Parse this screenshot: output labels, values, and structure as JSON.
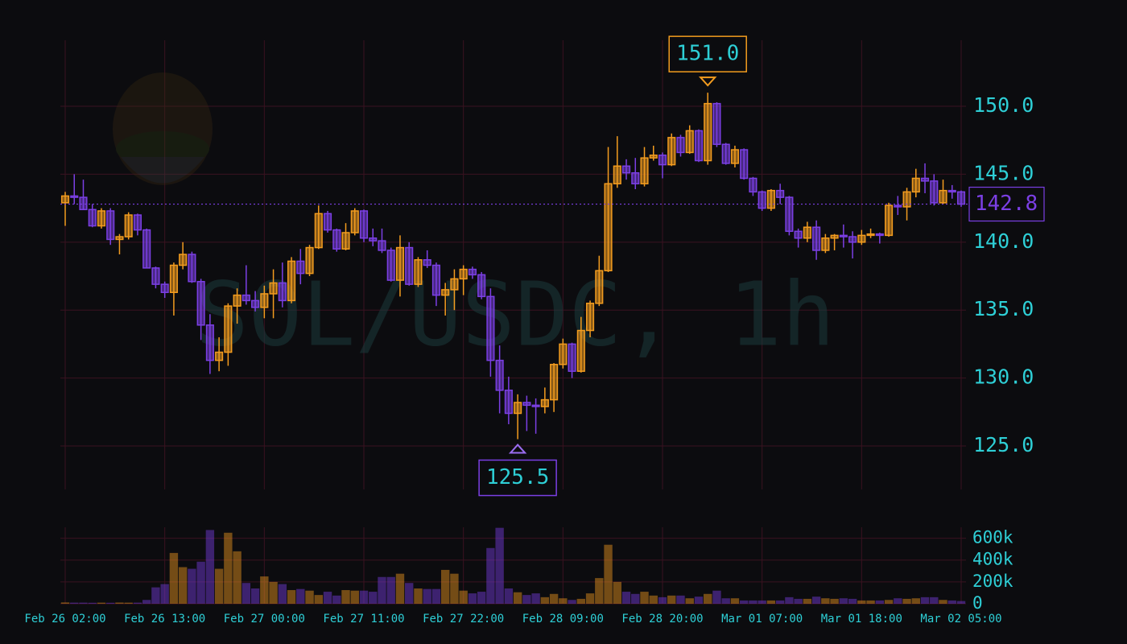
{
  "chart_data": {
    "type": "candlestick",
    "watermark": "SOL/USDC, 1h",
    "x": [
      "Feb 26 02:00",
      "Feb 26 03:00",
      "Feb 26 04:00",
      "Feb 26 05:00",
      "Feb 26 06:00",
      "Feb 26 07:00",
      "Feb 26 08:00",
      "Feb 26 09:00",
      "Feb 26 10:00",
      "Feb 26 11:00",
      "Feb 26 12:00",
      "Feb 26 13:00",
      "Feb 26 14:00",
      "Feb 26 15:00",
      "Feb 26 16:00",
      "Feb 26 17:00",
      "Feb 26 18:00",
      "Feb 26 19:00",
      "Feb 26 20:00",
      "Feb 26 21:00",
      "Feb 26 22:00",
      "Feb 26 23:00",
      "Feb 27 00:00",
      "Feb 27 01:00",
      "Feb 27 02:00",
      "Feb 27 03:00",
      "Feb 27 04:00",
      "Feb 27 05:00",
      "Feb 27 06:00",
      "Feb 27 07:00",
      "Feb 27 08:00",
      "Feb 27 09:00",
      "Feb 27 10:00",
      "Feb 27 11:00",
      "Feb 27 12:00",
      "Feb 27 13:00",
      "Feb 27 14:00",
      "Feb 27 15:00",
      "Feb 27 16:00",
      "Feb 27 17:00",
      "Feb 27 18:00",
      "Feb 27 19:00",
      "Feb 27 20:00",
      "Feb 27 21:00",
      "Feb 27 22:00",
      "Feb 27 23:00",
      "Feb 28 00:00",
      "Feb 28 01:00",
      "Feb 28 02:00",
      "Feb 28 03:00",
      "Feb 28 04:00",
      "Feb 28 05:00",
      "Feb 28 06:00",
      "Feb 28 07:00",
      "Feb 28 08:00",
      "Feb 28 09:00",
      "Feb 28 10:00",
      "Feb 28 11:00",
      "Feb 28 12:00",
      "Feb 28 13:00",
      "Feb 28 14:00",
      "Feb 28 15:00",
      "Feb 28 16:00",
      "Feb 28 17:00",
      "Feb 28 18:00",
      "Feb 28 19:00",
      "Feb 28 20:00",
      "Feb 28 21:00",
      "Feb 28 22:00",
      "Feb 28 23:00",
      "Mar 01 00:00",
      "Mar 01 01:00",
      "Mar 01 02:00",
      "Mar 01 03:00",
      "Mar 01 04:00",
      "Mar 01 05:00",
      "Mar 01 06:00",
      "Mar 01 07:00",
      "Mar 01 08:00",
      "Mar 01 09:00",
      "Mar 01 10:00",
      "Mar 01 11:00",
      "Mar 01 12:00",
      "Mar 01 13:00",
      "Mar 01 14:00",
      "Mar 01 15:00",
      "Mar 01 16:00",
      "Mar 01 17:00",
      "Mar 01 18:00",
      "Mar 01 19:00",
      "Mar 01 20:00",
      "Mar 01 21:00",
      "Mar 01 22:00",
      "Mar 01 23:00",
      "Mar 02 00:00",
      "Mar 02 01:00",
      "Mar 02 02:00",
      "Mar 02 03:00",
      "Mar 02 04:00",
      "Mar 02 05:00"
    ],
    "open": [
      142.9,
      143.4,
      143.3,
      142.4,
      141.2,
      142.3,
      140.2,
      140.4,
      142.0,
      140.9,
      138.1,
      136.9,
      136.3,
      138.3,
      139.1,
      137.1,
      133.9,
      131.3,
      131.9,
      135.3,
      136.1,
      135.7,
      135.2,
      136.2,
      137.0,
      135.7,
      138.6,
      137.7,
      139.6,
      142.1,
      140.9,
      139.5,
      140.7,
      142.3,
      140.3,
      140.1,
      139.4,
      137.2,
      139.6,
      136.9,
      138.7,
      138.3,
      136.1,
      136.5,
      137.3,
      138.0,
      137.6,
      136.0,
      131.3,
      129.1,
      127.4,
      128.2,
      128.0,
      127.9,
      128.4,
      131.0,
      132.5,
      130.5,
      133.5,
      135.5,
      137.9,
      144.3,
      145.6,
      145.1,
      144.3,
      146.2,
      146.4,
      145.7,
      147.7,
      146.6,
      148.2,
      146.0,
      150.2,
      147.2,
      145.8,
      146.8,
      144.7,
      143.7,
      142.5,
      143.8,
      143.3,
      140.8,
      140.3,
      141.1,
      139.4,
      140.3,
      140.5,
      140.4,
      140.0,
      140.5,
      140.6,
      140.5,
      142.7,
      142.6,
      143.7,
      144.7,
      144.5,
      142.9,
      143.8,
      143.7
    ],
    "high": [
      143.7,
      145.0,
      144.6,
      142.8,
      142.5,
      142.5,
      140.6,
      142.2,
      142.1,
      141.0,
      138.2,
      137.1,
      138.5,
      140.0,
      139.3,
      137.3,
      134.7,
      133.0,
      135.5,
      136.6,
      138.3,
      136.4,
      136.8,
      138.0,
      138.5,
      138.9,
      139.5,
      139.8,
      142.7,
      142.3,
      141.0,
      141.4,
      142.5,
      142.4,
      141.0,
      141.0,
      139.6,
      140.5,
      140.0,
      138.9,
      139.4,
      138.5,
      137.0,
      138.0,
      138.3,
      138.2,
      137.8,
      136.6,
      132.4,
      130.1,
      128.8,
      128.7,
      128.5,
      129.3,
      131.1,
      132.9,
      132.6,
      134.5,
      135.7,
      139.0,
      147.0,
      147.8,
      146.1,
      146.2,
      147.0,
      147.1,
      146.6,
      148.0,
      147.9,
      148.6,
      148.3,
      151.0,
      150.3,
      147.3,
      147.1,
      146.9,
      144.8,
      143.8,
      143.9,
      144.3,
      143.4,
      141.0,
      141.5,
      141.6,
      140.6,
      140.6,
      141.3,
      140.8,
      140.9,
      141.0,
      140.7,
      142.9,
      143.4,
      144.0,
      145.4,
      145.8,
      145.0,
      144.6,
      144.2,
      143.8
    ],
    "low": [
      141.2,
      142.8,
      142.4,
      141.1,
      141.0,
      139.8,
      139.1,
      140.2,
      140.5,
      138.1,
      136.6,
      135.9,
      134.6,
      138.0,
      137.0,
      132.8,
      130.3,
      130.5,
      130.9,
      134.0,
      135.4,
      134.9,
      134.4,
      134.4,
      135.2,
      135.5,
      136.9,
      137.5,
      139.5,
      140.7,
      139.3,
      139.4,
      140.5,
      140.0,
      139.7,
      139.2,
      137.1,
      136.0,
      136.8,
      136.7,
      138.1,
      135.3,
      134.6,
      135.0,
      136.1,
      137.3,
      135.8,
      130.1,
      127.4,
      126.6,
      125.5,
      126.1,
      125.9,
      127.4,
      127.5,
      130.7,
      130.0,
      130.4,
      133.0,
      135.3,
      137.8,
      144.0,
      144.6,
      143.9,
      144.1,
      146.0,
      144.7,
      145.6,
      146.3,
      146.5,
      145.9,
      145.7,
      147.0,
      145.7,
      145.5,
      144.6,
      143.4,
      142.3,
      142.3,
      142.8,
      140.5,
      139.6,
      140.0,
      138.7,
      139.2,
      139.4,
      139.6,
      138.8,
      139.8,
      140.3,
      139.9,
      140.4,
      142.0,
      141.6,
      143.3,
      143.6,
      142.7,
      142.8,
      143.2,
      142.6
    ],
    "close": [
      143.4,
      143.3,
      142.4,
      141.2,
      142.3,
      140.2,
      140.4,
      142.0,
      140.9,
      138.1,
      136.9,
      136.3,
      138.3,
      139.1,
      137.1,
      133.9,
      131.3,
      131.9,
      135.3,
      136.1,
      135.7,
      135.2,
      136.2,
      137.0,
      135.7,
      138.6,
      137.7,
      139.6,
      142.1,
      140.9,
      139.5,
      140.7,
      142.3,
      140.3,
      140.1,
      139.4,
      137.2,
      139.6,
      136.9,
      138.7,
      138.3,
      136.1,
      136.5,
      137.3,
      138.0,
      137.6,
      136.0,
      131.3,
      129.1,
      127.4,
      128.2,
      128.0,
      127.9,
      128.4,
      131.0,
      132.5,
      130.5,
      133.5,
      135.5,
      137.9,
      144.3,
      145.6,
      145.1,
      144.3,
      146.2,
      146.4,
      145.7,
      147.7,
      146.6,
      148.2,
      146.0,
      150.2,
      147.2,
      145.8,
      146.8,
      144.7,
      143.7,
      142.5,
      143.8,
      143.3,
      140.8,
      140.3,
      141.1,
      139.4,
      140.3,
      140.5,
      140.4,
      140.0,
      140.5,
      140.6,
      140.5,
      142.7,
      142.6,
      143.7,
      144.7,
      144.5,
      142.9,
      143.8,
      143.7,
      142.8
    ],
    "volume": [
      12000,
      10000,
      10000,
      9000,
      10000,
      9000,
      11000,
      10000,
      10000,
      35000,
      150000,
      180000,
      465000,
      335000,
      320000,
      385000,
      675000,
      320000,
      650000,
      480000,
      190000,
      140000,
      250000,
      200000,
      180000,
      125000,
      135000,
      120000,
      80000,
      110000,
      75000,
      125000,
      120000,
      120000,
      110000,
      245000,
      245000,
      275000,
      190000,
      140000,
      135000,
      135000,
      310000,
      275000,
      120000,
      95000,
      110000,
      510000,
      695000,
      140000,
      105000,
      80000,
      95000,
      60000,
      90000,
      50000,
      35000,
      45000,
      95000,
      235000,
      540000,
      200000,
      110000,
      90000,
      110000,
      75000,
      60000,
      75000,
      75000,
      50000,
      65000,
      90000,
      120000,
      50000,
      50000,
      30000,
      30000,
      30000,
      30000,
      30000,
      60000,
      45000,
      45000,
      65000,
      50000,
      45000,
      50000,
      45000,
      30000,
      30000,
      30000,
      35000,
      50000,
      45000,
      50000,
      60000,
      60000,
      35000,
      30000,
      25000
    ],
    "up_color": "#f39c1f",
    "down_color": "#7b3fe4",
    "ylim": [
      121.8,
      154.86
    ],
    "yticks": [
      {
        "value": 125,
        "label": "125.0"
      },
      {
        "value": 130,
        "label": "130.0"
      },
      {
        "value": 135,
        "label": "135.0"
      },
      {
        "value": 140,
        "label": "140.0"
      },
      {
        "value": 145,
        "label": "145.0"
      },
      {
        "value": 150,
        "label": "150.0"
      }
    ],
    "volume_ylim": [
      0,
      700000
    ],
    "volume_yticks": [
      0,
      {
        "value": 200000,
        "label": "200k"
      },
      {
        "value": 400000,
        "label": "400k"
      },
      {
        "value": 600000,
        "label": "600k"
      }
    ],
    "max_label": "151.0",
    "min_label": "125.5",
    "last_label": "142.8",
    "grid": true
  }
}
